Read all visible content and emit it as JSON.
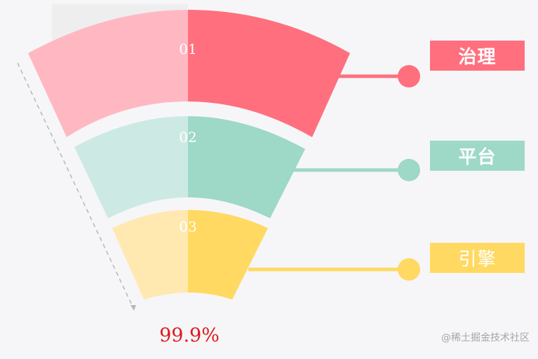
{
  "segments": [
    {
      "number": "01",
      "label": "治理",
      "color_dark": "#ff6f7e",
      "color_light": "#ffb8c1"
    },
    {
      "number": "02",
      "label": "平台",
      "color_dark": "#9ed8c6",
      "color_light": "#cde9e3"
    },
    {
      "number": "03",
      "label": "引擎",
      "color_dark": "#ffd961",
      "color_light": "#ffe9b1"
    }
  ],
  "footer": {
    "percent": "99.9%",
    "watermark": "@稀土掘金技术社区"
  }
}
